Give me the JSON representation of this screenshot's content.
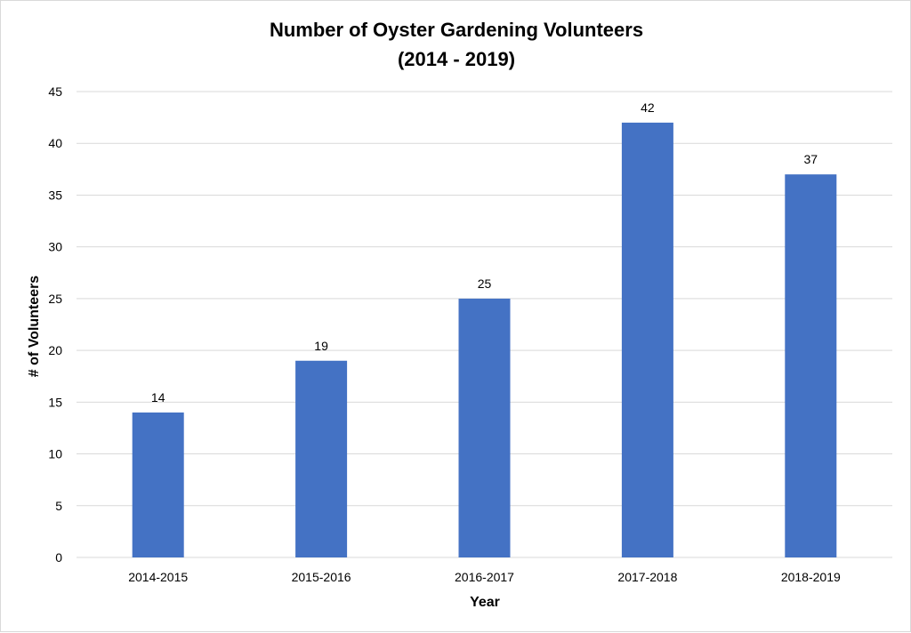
{
  "chart_data": {
    "type": "bar",
    "title": "Number of Oyster Gardening Volunteers",
    "subtitle": "(2014 - 2019)",
    "xlabel": "Year",
    "ylabel": "# of Volunteers",
    "categories": [
      "2014-2015",
      "2015-2016",
      "2016-2017",
      "2017-2018",
      "2018-2019"
    ],
    "values": [
      14,
      19,
      25,
      42,
      37
    ],
    "ylim": [
      0,
      45
    ],
    "yticks": [
      0,
      5,
      10,
      15,
      20,
      25,
      30,
      35,
      40,
      45
    ],
    "grid": true,
    "legend": "none",
    "bar_color": "#4472C4",
    "grid_color": "#D9D9D9"
  }
}
